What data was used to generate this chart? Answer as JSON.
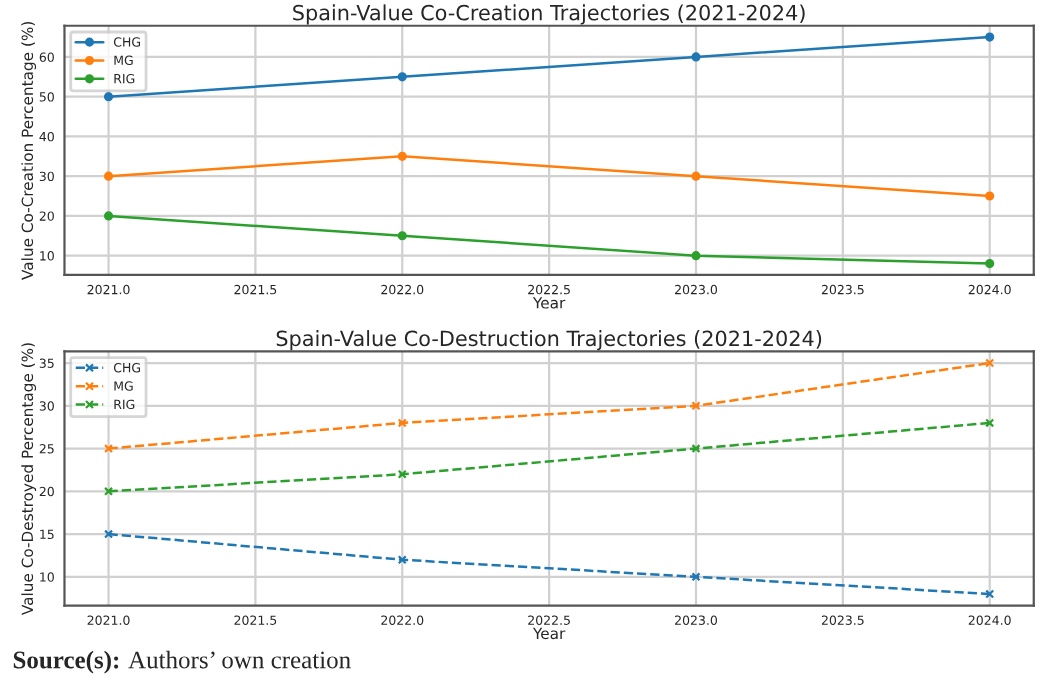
{
  "chart_data": [
    {
      "type": "line",
      "title": "Spain-Value Co-Creation Trajectories (2021-2024)",
      "xlabel": "Year",
      "ylabel": "Value Co-Creation Percentage (%)",
      "x": [
        2021,
        2022,
        2023,
        2024
      ],
      "xlim": [
        2020.85,
        2024.15
      ],
      "xticks": [
        {
          "value": 2021,
          "label": "2021.0"
        },
        {
          "value": 2021.5,
          "label": "2021.5"
        },
        {
          "value": 2022,
          "label": "2022.0"
        },
        {
          "value": 2022.5,
          "label": "2022.5"
        },
        {
          "value": 2023,
          "label": "2023.0"
        },
        {
          "value": 2023.5,
          "label": "2023.5"
        },
        {
          "value": 2024,
          "label": "2024.0"
        }
      ],
      "ylim": [
        5.15,
        67.85
      ],
      "yticks": [
        10,
        20,
        30,
        40,
        50,
        60
      ],
      "grid": true,
      "legend": "top left",
      "marker": "circle",
      "line_style": "solid",
      "series": [
        {
          "name": "CHG",
          "color": "#1f77b4",
          "values": [
            50,
            55,
            60,
            65
          ]
        },
        {
          "name": "MG",
          "color": "#ff7f0e",
          "values": [
            30,
            35,
            30,
            25
          ]
        },
        {
          "name": "RIG",
          "color": "#2ca02c",
          "values": [
            20,
            15,
            10,
            8
          ]
        }
      ]
    },
    {
      "type": "line",
      "title": "Spain-Value Co-Destruction Trajectories (2021-2024)",
      "xlabel": "Year",
      "ylabel": "Value Co-Destroyed Percentage (%)",
      "x": [
        2021,
        2022,
        2023,
        2024
      ],
      "xlim": [
        2020.85,
        2024.15
      ],
      "xticks": [
        {
          "value": 2021,
          "label": "2021.0"
        },
        {
          "value": 2021.5,
          "label": "2021.5"
        },
        {
          "value": 2022,
          "label": "2022.0"
        },
        {
          "value": 2022.5,
          "label": "2022.5"
        },
        {
          "value": 2023,
          "label": "2023.0"
        },
        {
          "value": 2023.5,
          "label": "2023.5"
        },
        {
          "value": 2024,
          "label": "2024.0"
        }
      ],
      "ylim": [
        6.65,
        36.35
      ],
      "yticks": [
        10,
        15,
        20,
        25,
        30,
        35
      ],
      "grid": true,
      "legend": "top left",
      "marker": "cross",
      "line_style": "dashed",
      "annotations": [
        "Source(s): Authors’ own creation"
      ],
      "series": [
        {
          "name": "CHG",
          "color": "#1f77b4",
          "values": [
            15,
            12,
            10,
            8
          ]
        },
        {
          "name": "MG",
          "color": "#ff7f0e",
          "values": [
            25,
            28,
            30,
            35
          ]
        },
        {
          "name": "RIG",
          "color": "#2ca02c",
          "values": [
            20,
            22,
            25,
            28
          ]
        }
      ]
    }
  ]
}
